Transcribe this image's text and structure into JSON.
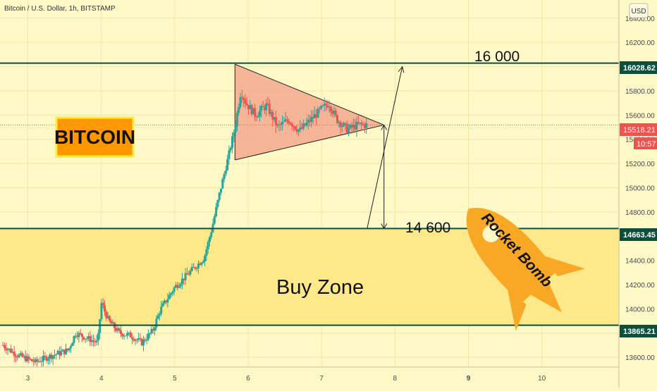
{
  "header": {
    "symbol_title": "Bitcoin / U.S. Dollar, 1h, BITSTAMP"
  },
  "currency_button": "USD",
  "badge": {
    "label": "BITCOIN"
  },
  "zone": {
    "label": "Buy Zone"
  },
  "rocket": {
    "label": "Rocket Bomb"
  },
  "annotations": {
    "target": "16 000",
    "measure": "14 600"
  },
  "price_labels": {
    "resistance": "16028.62",
    "current": "15518.21",
    "countdown": "10:57",
    "support_top": "14663.45",
    "support_bottom": "13865.21"
  },
  "colors": {
    "background": "#fff9c8",
    "zone_fill": "#fde98a",
    "level_line": "#0b4f3c",
    "bull": "#26a69a",
    "bear": "#ef5350",
    "triangle_fill": "#f4a48b",
    "badge_bg": "#ff9800",
    "rocket": "#f9a825"
  },
  "chart_data": {
    "type": "candlestick",
    "title": "Bitcoin / U.S. Dollar, 1h, BITSTAMP",
    "y_ticks": [
      13600,
      13800,
      14000,
      14200,
      14400,
      14600,
      14800,
      15000,
      15200,
      15400,
      15600,
      15800,
      16000,
      16200,
      16400
    ],
    "y_tick_labels": [
      "13600.00",
      "13800.00",
      "14000.00",
      "14200.00",
      "14400.00",
      "14600.00",
      "14800.00",
      "15000.00",
      "15200.00",
      "15400.00",
      "15600.00",
      "15800.00",
      "16000.00",
      "16200.00",
      "16400.00"
    ],
    "x_ticks": [
      3,
      4,
      5,
      6,
      7,
      8,
      9,
      10
    ],
    "x_tick_labels": [
      "3",
      "4",
      "5",
      "6",
      "7",
      "8",
      "9",
      "10"
    ],
    "ylim": [
      13520,
      16550
    ],
    "xlim": [
      2.62,
      11.05
    ],
    "levels": [
      16028.62,
      14663.45,
      13865.21
    ],
    "current_price": 15518.21,
    "buy_zone": [
      13865.21,
      14663.45
    ],
    "triangle": {
      "top": [
        5.82,
        16020
      ],
      "bottom": [
        5.82,
        15230
      ],
      "apex": [
        7.85,
        15518
      ]
    },
    "target_arrow": {
      "from": [
        7.62,
        14663
      ],
      "to": [
        8.1,
        16000
      ]
    },
    "measure_arrow": {
      "x": 7.85,
      "from": 15518,
      "to": 14663
    },
    "pivot_path": [
      [
        2.66,
        13700
      ],
      [
        2.85,
        13620
      ],
      [
        3.1,
        13560
      ],
      [
        3.3,
        13610
      ],
      [
        3.55,
        13660
      ],
      [
        3.65,
        13800
      ],
      [
        3.8,
        13760
      ],
      [
        3.95,
        13720
      ],
      [
        4.0,
        14050
      ],
      [
        4.1,
        13900
      ],
      [
        4.25,
        13800
      ],
      [
        4.4,
        13780
      ],
      [
        4.55,
        13720
      ],
      [
        4.7,
        13820
      ],
      [
        4.8,
        13990
      ],
      [
        5.0,
        14180
      ],
      [
        5.2,
        14300
      ],
      [
        5.4,
        14420
      ],
      [
        5.5,
        14650
      ],
      [
        5.62,
        14980
      ],
      [
        5.72,
        15230
      ],
      [
        5.82,
        15500
      ],
      [
        5.9,
        15800
      ],
      [
        5.97,
        15700
      ],
      [
        6.1,
        15600
      ],
      [
        6.25,
        15680
      ],
      [
        6.4,
        15500
      ],
      [
        6.55,
        15560
      ],
      [
        6.7,
        15470
      ],
      [
        6.85,
        15560
      ],
      [
        7.0,
        15650
      ],
      [
        7.1,
        15700
      ],
      [
        7.2,
        15570
      ],
      [
        7.35,
        15480
      ],
      [
        7.5,
        15520
      ],
      [
        7.62,
        15518
      ]
    ]
  }
}
